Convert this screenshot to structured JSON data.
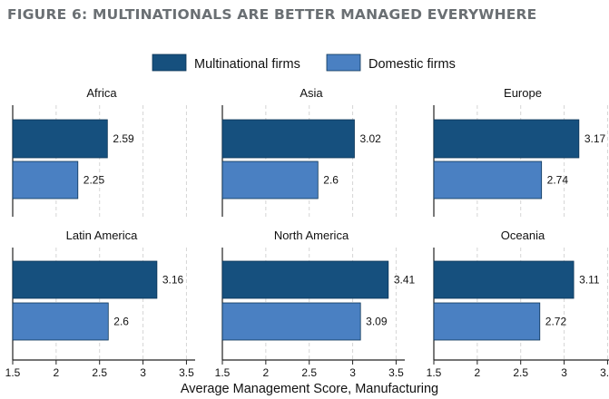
{
  "figure_title": "FIGURE 6: MULTINATIONALS ARE BETTER MANAGED EVERYWHERE",
  "colors": {
    "multinational": "#16507e",
    "domestic": "#4a80c2",
    "grid": "#d6d6d6",
    "title": "#6a6f73"
  },
  "chart_data": {
    "type": "bar",
    "orientation": "horizontal",
    "xlabel": "Average Management Score, Manufacturing",
    "xlim": [
      1.5,
      3.6
    ],
    "xticks": [
      1.5,
      2,
      2.5,
      3,
      3.5
    ],
    "xtick_labels": [
      "1.5",
      "2",
      "2.5",
      "3",
      "3.5"
    ],
    "legend_position": "top",
    "grid": true,
    "series_names": [
      "Multinational firms",
      "Domestic firms"
    ],
    "panels": [
      {
        "title": "Africa",
        "values": [
          2.59,
          2.25
        ],
        "labels": [
          "2.59",
          "2.25"
        ]
      },
      {
        "title": "Asia",
        "values": [
          3.02,
          2.6
        ],
        "labels": [
          "3.02",
          "2.6"
        ]
      },
      {
        "title": "Europe",
        "values": [
          3.17,
          2.74
        ],
        "labels": [
          "3.17",
          "2.74"
        ]
      },
      {
        "title": "Latin America",
        "values": [
          3.16,
          2.6
        ],
        "labels": [
          "3.16",
          "2.6"
        ]
      },
      {
        "title": "North America",
        "values": [
          3.41,
          3.09
        ],
        "labels": [
          "3.41",
          "3.09"
        ]
      },
      {
        "title": "Oceania",
        "values": [
          3.11,
          2.72
        ],
        "labels": [
          "3.11",
          "2.72"
        ]
      }
    ]
  }
}
